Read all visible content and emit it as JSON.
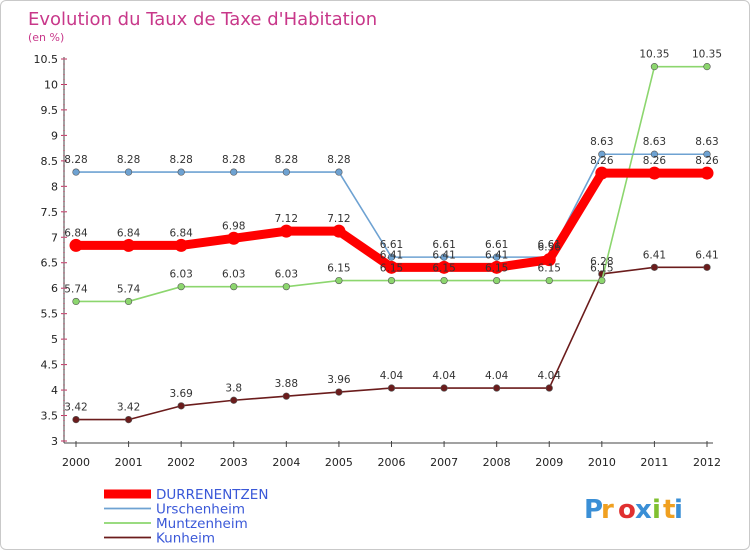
{
  "chart_data": {
    "type": "line",
    "title": "Evolution du Taux de Taxe d'Habitation",
    "subtitle": "(en %)",
    "x": [
      "2000",
      "2001",
      "2002",
      "2003",
      "2004",
      "2005",
      "2006",
      "2007",
      "2008",
      "2009",
      "2010",
      "2011",
      "2012"
    ],
    "yticks": [
      "3",
      "3.5",
      "4",
      "4.5",
      "5",
      "5.5",
      "6",
      "6.5",
      "7",
      "7.5",
      "8",
      "8.5",
      "9",
      "9.5",
      "10",
      "10.5"
    ],
    "ylim": [
      3,
      10.5
    ],
    "grid": false,
    "legend_position": "bottom-left",
    "series": [
      {
        "name": "DURRENENTZEN",
        "color": "#ff0000",
        "values": [
          6.84,
          6.84,
          6.84,
          6.98,
          7.12,
          7.12,
          6.41,
          6.41,
          6.41,
          6.56,
          8.26,
          8.26,
          8.26
        ],
        "labels": [
          "6.84",
          "6.84",
          "6.84",
          "6.98",
          "7.12",
          "7.12",
          "6.41",
          "6.41",
          "6.41",
          "6.56",
          "8.26",
          "8.26",
          "8.26"
        ]
      },
      {
        "name": "Urschenheim",
        "color": "#6ea2d2",
        "values": [
          8.28,
          8.28,
          8.28,
          8.28,
          8.28,
          8.28,
          6.61,
          6.61,
          6.61,
          6.61,
          8.63,
          8.63,
          8.63
        ],
        "labels": [
          "8.28",
          "8.28",
          "8.28",
          "8.28",
          "8.28",
          "8.28",
          "6.61",
          "6.61",
          "6.61",
          "6.61",
          "8.63",
          "8.63",
          "8.63"
        ]
      },
      {
        "name": "Muntzenheim",
        "color": "#8cd66e",
        "values": [
          5.74,
          5.74,
          6.03,
          6.03,
          6.03,
          6.15,
          6.15,
          6.15,
          6.15,
          6.15,
          6.15,
          10.35,
          10.35
        ],
        "labels": [
          "5.74",
          "5.74",
          "6.03",
          "6.03",
          "6.03",
          "6.15",
          "6.15",
          "6.15",
          "6.15",
          "6.15",
          "6.15",
          "10.35",
          "10.35"
        ]
      },
      {
        "name": "Kunheim",
        "color": "#6b1c1c",
        "values": [
          3.42,
          3.42,
          3.69,
          3.8,
          3.88,
          3.96,
          4.04,
          4.04,
          4.04,
          4.04,
          6.28,
          6.41,
          6.41
        ],
        "labels": [
          "3.42",
          "3.42",
          "3.69",
          "3.8",
          "3.88",
          "3.96",
          "4.04",
          "4.04",
          "4.04",
          "4.04",
          "6.28",
          "6.41",
          "6.41"
        ]
      }
    ]
  },
  "logo": {
    "letters": [
      "P",
      "r",
      "o",
      "x",
      "i",
      "t",
      "i"
    ],
    "colors": [
      "#3a8fd6",
      "#f0a020",
      "#e03030",
      "#3a8fd6",
      "#80c030",
      "#f0a020",
      "#3a8fd6"
    ]
  }
}
